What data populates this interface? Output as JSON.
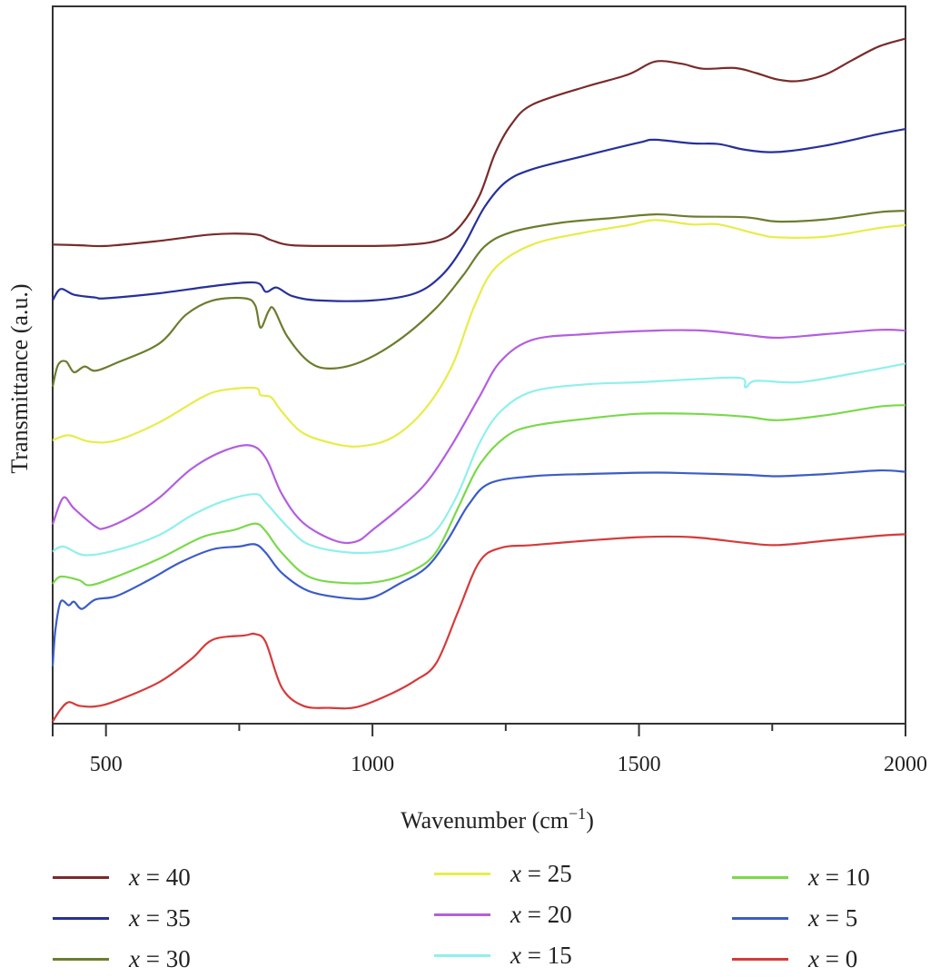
{
  "chart_data": {
    "type": "line",
    "title": "",
    "xlabel": "Wavenumber (cm⁻¹)",
    "xlabel_main": "Wavenumber (cm",
    "xlabel_sup": "−1",
    "xlabel_close": ")",
    "ylabel": "Transmittance (a.u.)",
    "xlim": [
      400,
      2000
    ],
    "ylim": [
      0,
      100
    ],
    "x_ticks": [
      500,
      1000,
      1500,
      2000
    ],
    "x_tick_labels": [
      "500",
      "1000",
      "1500",
      "2000"
    ],
    "x_minor_ticks": [
      750,
      1250,
      1750
    ],
    "grid": false,
    "legend_placement": "bottom",
    "series": [
      {
        "name": "x = 40",
        "var": "x",
        "value": "40",
        "color": "#7a2b2b",
        "points": [
          [
            400,
            66.8
          ],
          [
            450,
            66.7
          ],
          [
            500,
            66.6
          ],
          [
            600,
            67.3
          ],
          [
            700,
            68.2
          ],
          [
            780,
            68.2
          ],
          [
            810,
            67.4
          ],
          [
            850,
            66.7
          ],
          [
            950,
            66.6
          ],
          [
            1050,
            66.7
          ],
          [
            1120,
            67.3
          ],
          [
            1160,
            69.0
          ],
          [
            1200,
            73.5
          ],
          [
            1230,
            79.5
          ],
          [
            1260,
            83.5
          ],
          [
            1300,
            86.3
          ],
          [
            1400,
            88.8
          ],
          [
            1480,
            90.5
          ],
          [
            1530,
            92.3
          ],
          [
            1580,
            92.0
          ],
          [
            1620,
            91.3
          ],
          [
            1680,
            91.4
          ],
          [
            1720,
            90.7
          ],
          [
            1760,
            89.8
          ],
          [
            1800,
            89.6
          ],
          [
            1850,
            90.5
          ],
          [
            1900,
            92.5
          ],
          [
            1950,
            94.4
          ],
          [
            2000,
            95.5
          ]
        ]
      },
      {
        "name": "x = 35",
        "var": "x",
        "value": "35",
        "color": "#27309a",
        "points": [
          [
            400,
            59.0
          ],
          [
            415,
            60.6
          ],
          [
            440,
            59.8
          ],
          [
            480,
            59.4
          ],
          [
            500,
            59.3
          ],
          [
            600,
            60.0
          ],
          [
            700,
            61.0
          ],
          [
            780,
            61.5
          ],
          [
            800,
            60.2
          ],
          [
            820,
            60.8
          ],
          [
            850,
            59.6
          ],
          [
            900,
            59.0
          ],
          [
            1000,
            59.0
          ],
          [
            1080,
            60.0
          ],
          [
            1130,
            62.5
          ],
          [
            1170,
            66.5
          ],
          [
            1210,
            72.0
          ],
          [
            1250,
            75.5
          ],
          [
            1300,
            77.3
          ],
          [
            1400,
            79.2
          ],
          [
            1500,
            81.0
          ],
          [
            1530,
            81.4
          ],
          [
            1600,
            80.9
          ],
          [
            1650,
            80.8
          ],
          [
            1700,
            80.0
          ],
          [
            1760,
            79.7
          ],
          [
            1850,
            80.6
          ],
          [
            1950,
            82.2
          ],
          [
            2000,
            82.9
          ]
        ]
      },
      {
        "name": "x = 30",
        "var": "x",
        "value": "30",
        "color": "#6b7d2e",
        "points": [
          [
            400,
            47.0
          ],
          [
            410,
            50.0
          ],
          [
            425,
            50.5
          ],
          [
            440,
            49.0
          ],
          [
            460,
            49.8
          ],
          [
            480,
            49.2
          ],
          [
            520,
            50.3
          ],
          [
            600,
            53.0
          ],
          [
            650,
            57.0
          ],
          [
            700,
            59.0
          ],
          [
            760,
            59.3
          ],
          [
            780,
            58.3
          ],
          [
            790,
            55.2
          ],
          [
            805,
            57.5
          ],
          [
            815,
            57.8
          ],
          [
            840,
            54.0
          ],
          [
            880,
            50.5
          ],
          [
            920,
            49.5
          ],
          [
            980,
            50.5
          ],
          [
            1050,
            53.5
          ],
          [
            1120,
            58.0
          ],
          [
            1170,
            62.5
          ],
          [
            1210,
            66.5
          ],
          [
            1260,
            68.5
          ],
          [
            1350,
            69.8
          ],
          [
            1450,
            70.5
          ],
          [
            1530,
            71.0
          ],
          [
            1600,
            70.7
          ],
          [
            1700,
            70.6
          ],
          [
            1760,
            70.0
          ],
          [
            1850,
            70.3
          ],
          [
            1950,
            71.3
          ],
          [
            2000,
            71.5
          ]
        ]
      },
      {
        "name": "x = 25",
        "var": "x",
        "value": "25",
        "color": "#e8ec48",
        "points": [
          [
            400,
            39.5
          ],
          [
            430,
            40.2
          ],
          [
            470,
            39.3
          ],
          [
            520,
            39.5
          ],
          [
            600,
            42.0
          ],
          [
            680,
            45.5
          ],
          [
            720,
            46.5
          ],
          [
            780,
            46.8
          ],
          [
            790,
            45.8
          ],
          [
            810,
            45.5
          ],
          [
            830,
            43.5
          ],
          [
            870,
            40.5
          ],
          [
            930,
            39.0
          ],
          [
            980,
            38.7
          ],
          [
            1040,
            40.0
          ],
          [
            1100,
            44.0
          ],
          [
            1150,
            50.0
          ],
          [
            1190,
            58.0
          ],
          [
            1230,
            63.5
          ],
          [
            1300,
            66.8
          ],
          [
            1400,
            68.5
          ],
          [
            1480,
            69.5
          ],
          [
            1530,
            70.2
          ],
          [
            1600,
            69.6
          ],
          [
            1650,
            69.6
          ],
          [
            1720,
            68.3
          ],
          [
            1760,
            67.8
          ],
          [
            1850,
            67.9
          ],
          [
            1950,
            69.1
          ],
          [
            2000,
            69.5
          ]
        ]
      },
      {
        "name": "x = 20",
        "var": "x",
        "value": "20",
        "color": "#b35ee0",
        "points": [
          [
            400,
            27.8
          ],
          [
            420,
            31.5
          ],
          [
            440,
            30.0
          ],
          [
            480,
            27.5
          ],
          [
            500,
            27.3
          ],
          [
            550,
            29.0
          ],
          [
            600,
            31.5
          ],
          [
            660,
            35.5
          ],
          [
            720,
            38.0
          ],
          [
            770,
            38.8
          ],
          [
            800,
            37.0
          ],
          [
            830,
            32.0
          ],
          [
            870,
            28.0
          ],
          [
            930,
            25.5
          ],
          [
            970,
            25.4
          ],
          [
            1000,
            27.0
          ],
          [
            1050,
            30.0
          ],
          [
            1100,
            33.5
          ],
          [
            1150,
            39.0
          ],
          [
            1200,
            45.5
          ],
          [
            1240,
            50.5
          ],
          [
            1300,
            53.5
          ],
          [
            1400,
            54.3
          ],
          [
            1530,
            54.8
          ],
          [
            1620,
            54.8
          ],
          [
            1700,
            54.2
          ],
          [
            1760,
            53.8
          ],
          [
            1850,
            54.3
          ],
          [
            1950,
            54.9
          ],
          [
            2000,
            54.8
          ]
        ]
      },
      {
        "name": "x = 15",
        "var": "x",
        "value": "15",
        "color": "#8ef0ec",
        "points": [
          [
            400,
            24.0
          ],
          [
            420,
            24.7
          ],
          [
            460,
            23.5
          ],
          [
            520,
            24.2
          ],
          [
            600,
            26.3
          ],
          [
            660,
            29.0
          ],
          [
            720,
            31.0
          ],
          [
            780,
            32.0
          ],
          [
            800,
            30.8
          ],
          [
            840,
            27.5
          ],
          [
            880,
            25.0
          ],
          [
            950,
            23.9
          ],
          [
            1020,
            24.0
          ],
          [
            1080,
            25.3
          ],
          [
            1120,
            27.0
          ],
          [
            1160,
            32.0
          ],
          [
            1200,
            39.0
          ],
          [
            1240,
            43.5
          ],
          [
            1300,
            46.3
          ],
          [
            1400,
            47.3
          ],
          [
            1500,
            47.6
          ],
          [
            1600,
            48.0
          ],
          [
            1690,
            48.2
          ],
          [
            1700,
            46.9
          ],
          [
            1720,
            47.8
          ],
          [
            1800,
            47.6
          ],
          [
            1900,
            48.8
          ],
          [
            2000,
            50.2
          ]
        ]
      },
      {
        "name": "x = 10",
        "var": "x",
        "value": "10",
        "color": "#7ad94a",
        "points": [
          [
            400,
            19.5
          ],
          [
            415,
            20.5
          ],
          [
            450,
            20.0
          ],
          [
            470,
            19.3
          ],
          [
            520,
            20.5
          ],
          [
            600,
            23.0
          ],
          [
            680,
            26.0
          ],
          [
            740,
            27.0
          ],
          [
            780,
            27.9
          ],
          [
            800,
            26.8
          ],
          [
            830,
            23.8
          ],
          [
            880,
            20.5
          ],
          [
            950,
            19.6
          ],
          [
            1020,
            19.9
          ],
          [
            1080,
            21.5
          ],
          [
            1120,
            24.0
          ],
          [
            1160,
            30.0
          ],
          [
            1200,
            36.0
          ],
          [
            1250,
            40.0
          ],
          [
            1300,
            41.5
          ],
          [
            1400,
            42.5
          ],
          [
            1500,
            43.2
          ],
          [
            1600,
            43.2
          ],
          [
            1700,
            42.8
          ],
          [
            1760,
            42.3
          ],
          [
            1850,
            43.0
          ],
          [
            1950,
            44.2
          ],
          [
            2000,
            44.4
          ]
        ]
      },
      {
        "name": "x = 5",
        "var": "x",
        "value": "5",
        "color": "#3b5cc8",
        "points": [
          [
            400,
            8.0
          ],
          [
            405,
            13.0
          ],
          [
            415,
            17.0
          ],
          [
            430,
            16.5
          ],
          [
            440,
            17.0
          ],
          [
            455,
            16.0
          ],
          [
            480,
            17.3
          ],
          [
            520,
            17.8
          ],
          [
            580,
            20.0
          ],
          [
            640,
            22.5
          ],
          [
            700,
            24.3
          ],
          [
            750,
            24.7
          ],
          [
            780,
            25.0
          ],
          [
            800,
            23.8
          ],
          [
            830,
            21.0
          ],
          [
            880,
            18.5
          ],
          [
            950,
            17.5
          ],
          [
            1000,
            17.6
          ],
          [
            1050,
            19.5
          ],
          [
            1100,
            21.7
          ],
          [
            1140,
            25.5
          ],
          [
            1180,
            30.5
          ],
          [
            1220,
            33.5
          ],
          [
            1300,
            34.5
          ],
          [
            1400,
            34.8
          ],
          [
            1530,
            35.0
          ],
          [
            1600,
            34.9
          ],
          [
            1700,
            34.7
          ],
          [
            1760,
            34.5
          ],
          [
            1850,
            34.8
          ],
          [
            1950,
            35.3
          ],
          [
            2000,
            35.1
          ]
        ]
      },
      {
        "name": "x = 0",
        "var": "x",
        "value": "0",
        "color": "#d63a3a",
        "points": [
          [
            400,
            0.3
          ],
          [
            415,
            2.0
          ],
          [
            430,
            3.0
          ],
          [
            450,
            2.5
          ],
          [
            480,
            2.4
          ],
          [
            520,
            3.2
          ],
          [
            600,
            5.8
          ],
          [
            660,
            9.0
          ],
          [
            700,
            11.7
          ],
          [
            760,
            12.3
          ],
          [
            780,
            12.5
          ],
          [
            800,
            11.3
          ],
          [
            830,
            5.0
          ],
          [
            870,
            2.5
          ],
          [
            920,
            2.2
          ],
          [
            970,
            2.3
          ],
          [
            1030,
            4.0
          ],
          [
            1080,
            6.0
          ],
          [
            1120,
            8.5
          ],
          [
            1160,
            15.5
          ],
          [
            1200,
            22.5
          ],
          [
            1240,
            24.5
          ],
          [
            1300,
            24.9
          ],
          [
            1400,
            25.5
          ],
          [
            1500,
            26.0
          ],
          [
            1600,
            26.0
          ],
          [
            1700,
            25.2
          ],
          [
            1760,
            24.9
          ],
          [
            1850,
            25.5
          ],
          [
            1950,
            26.2
          ],
          [
            2000,
            26.4
          ]
        ]
      }
    ]
  }
}
